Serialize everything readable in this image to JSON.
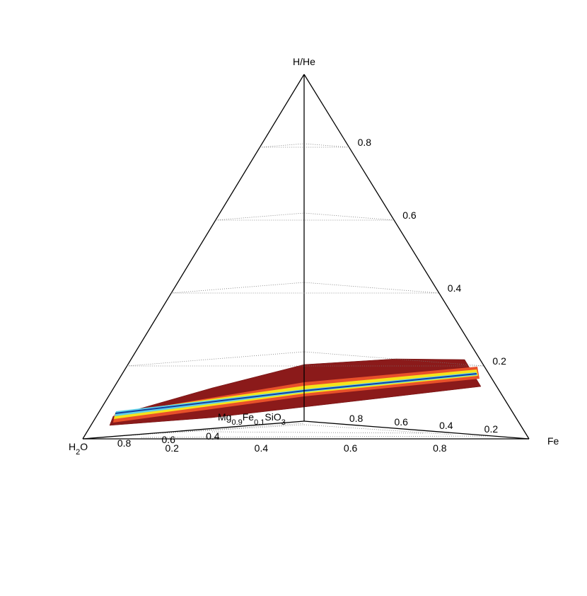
{
  "chart_data": {
    "type": "tetrahedron",
    "vertices": {
      "top": [
        "H/He"
      ],
      "left": [
        "H",
        "2",
        "O"
      ],
      "right": [
        "Fe"
      ],
      "back": [
        "Mg",
        "0.9",
        "Fe",
        "0.1",
        "SiO",
        "3"
      ]
    },
    "edge_ticks": {
      "top_right": [
        0.8,
        0.6,
        0.4,
        0.2
      ],
      "bottom": [
        0.2,
        0.4,
        0.6,
        0.8
      ],
      "back_left": [
        0.8,
        0.6,
        0.4
      ],
      "back_right": [
        0.8,
        0.6,
        0.4,
        0.2
      ]
    }
  }
}
